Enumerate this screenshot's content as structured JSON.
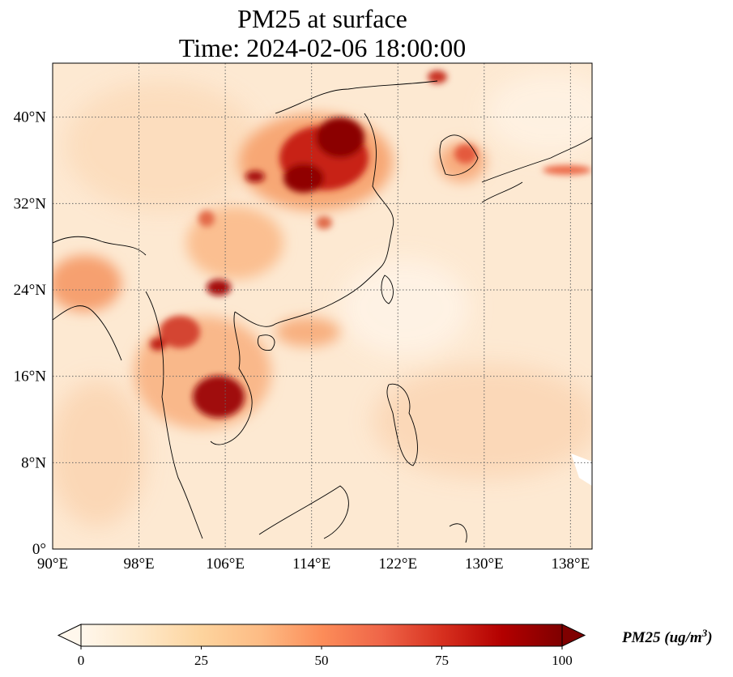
{
  "title": {
    "line1": "PM25 at surface",
    "line2": "Time: 2024-02-06 18:00:00"
  },
  "map": {
    "lon_range": [
      90,
      140
    ],
    "lat_range": [
      0,
      45
    ],
    "x_ticks": [
      "90°E",
      "98°E",
      "106°E",
      "114°E",
      "122°E",
      "130°E",
      "138°E"
    ],
    "y_ticks": [
      "0°",
      "8°N",
      "16°N",
      "24°N",
      "32°N",
      "40°N"
    ],
    "gridlines": "dotted"
  },
  "colorbar": {
    "label": "PM25 (ug/m",
    "label_sup": "3",
    "label_close": ")",
    "ticks": [
      "0",
      "25",
      "50",
      "75",
      "100"
    ],
    "colormap": "OrRd",
    "colors": [
      "#fff7ec",
      "#fee8c8",
      "#fdd49e",
      "#fdbb84",
      "#fc8d59",
      "#ef6548",
      "#d7301f",
      "#b30000",
      "#7f0000"
    ]
  }
}
